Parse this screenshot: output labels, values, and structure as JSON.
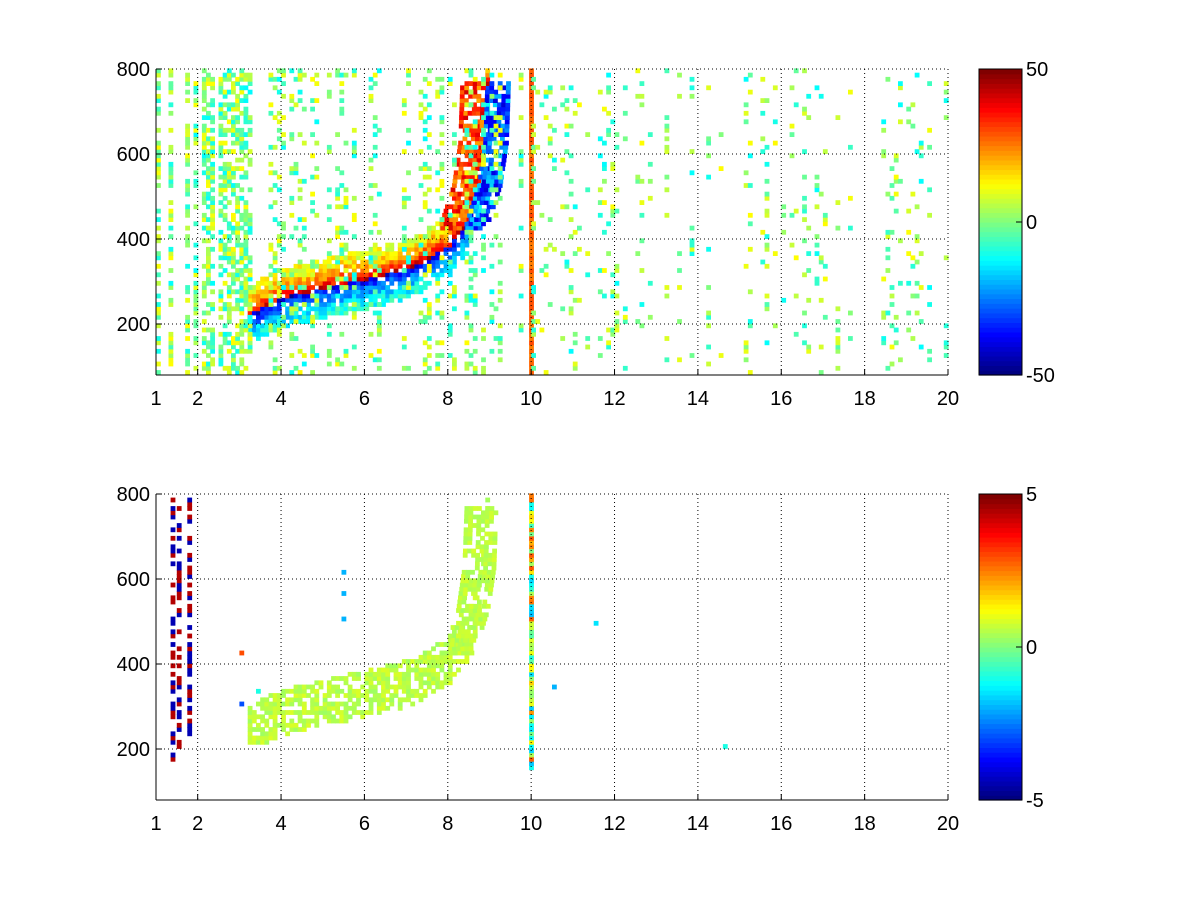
{
  "chart_data": [
    {
      "type": "heatmap",
      "title": "",
      "xlabel": "",
      "ylabel": "",
      "xlim": [
        1,
        20
      ],
      "ylim": [
        80,
        800
      ],
      "x_ticks": [
        1,
        2,
        4,
        6,
        8,
        10,
        12,
        14,
        16,
        18,
        20
      ],
      "x_tick_labels": [
        "1",
        "2",
        "4",
        "6",
        "8",
        "10",
        "12",
        "14",
        "16",
        "18",
        "20"
      ],
      "y_ticks": [
        200,
        400,
        600,
        800
      ],
      "y_tick_labels": [
        "200",
        "400",
        "600",
        "800"
      ],
      "grid": true,
      "colormap": "jet",
      "colorbar": {
        "range": [
          -50,
          50
        ],
        "ticks": [
          -50,
          0,
          50
        ],
        "tick_labels": [
          "-50",
          "0",
          "50"
        ]
      },
      "features": {
        "curve_center": [
          [
            3.2,
            215
          ],
          [
            4.0,
            255
          ],
          [
            5.0,
            280
          ],
          [
            6.0,
            300
          ],
          [
            7.0,
            325
          ],
          [
            7.5,
            350
          ],
          [
            8.0,
            380
          ],
          [
            8.4,
            430
          ],
          [
            8.7,
            520
          ],
          [
            8.85,
            620
          ],
          [
            8.9,
            760
          ]
        ],
        "curve_pos_value": 42,
        "curve_neg_value": -42,
        "vertical_stripe": {
          "x": 10,
          "value": 28
        },
        "noise_columns_x_range": [
          1,
          20
        ]
      }
    },
    {
      "type": "heatmap",
      "title": "",
      "xlabel": "",
      "ylabel": "",
      "xlim": [
        1,
        20
      ],
      "ylim": [
        80,
        800
      ],
      "x_ticks": [
        1,
        2,
        4,
        6,
        8,
        10,
        12,
        14,
        16,
        18,
        20
      ],
      "x_tick_labels": [
        "1",
        "2",
        "4",
        "6",
        "8",
        "10",
        "12",
        "14",
        "16",
        "18",
        "20"
      ],
      "y_ticks": [
        200,
        400,
        600,
        800
      ],
      "y_tick_labels": [
        "200",
        "400",
        "600",
        "800"
      ],
      "grid": true,
      "colormap": "jet",
      "colorbar": {
        "range": [
          -5,
          5
        ],
        "ticks": [
          -5,
          0,
          5
        ],
        "tick_labels": [
          "-5",
          "0",
          "5"
        ]
      },
      "features": {
        "curve_center": [
          [
            3.2,
            215
          ],
          [
            4.0,
            255
          ],
          [
            5.0,
            280
          ],
          [
            6.0,
            300
          ],
          [
            7.0,
            325
          ],
          [
            7.5,
            350
          ],
          [
            8.0,
            380
          ],
          [
            8.4,
            430
          ],
          [
            8.7,
            520
          ],
          [
            8.85,
            620
          ],
          [
            8.9,
            760
          ]
        ],
        "curve_value": 0.6,
        "vertical_stripe": {
          "x": 10,
          "value_range": [
            -2,
            3
          ]
        },
        "edge_columns_x": [
          1.35,
          1.5,
          1.75
        ]
      }
    }
  ]
}
